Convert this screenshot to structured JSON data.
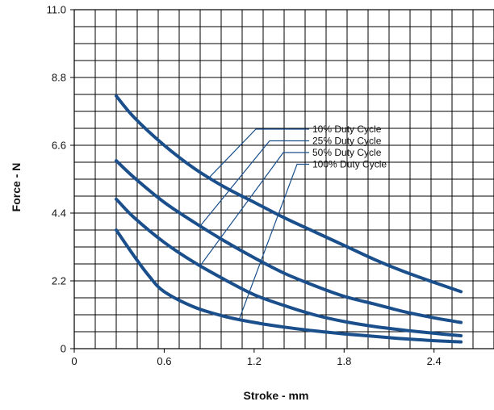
{
  "chart_data": {
    "type": "line",
    "title": "",
    "xlabel": "Stroke - mm",
    "ylabel": "Force - N",
    "xlim": [
      0,
      2.8
    ],
    "ylim": [
      0,
      11.0
    ],
    "x_ticks": [
      0,
      0.6,
      1.2,
      1.8,
      2.4
    ],
    "x_tick_labels": [
      "0",
      "0.6",
      "1.2",
      "1.8",
      "2.4"
    ],
    "y_ticks": [
      0,
      2.2,
      4.4,
      6.6,
      8.8,
      11.0
    ],
    "y_tick_labels": [
      "0",
      "2.2",
      "4.4",
      "6.6",
      "8.8",
      "11.0"
    ],
    "grid": true,
    "legend_position": "upper-right, with leader lines to each curve",
    "line_color": "#1a4f8c",
    "series": [
      {
        "name": "10% Duty Cycle",
        "x": [
          0.28,
          0.4,
          0.6,
          0.8,
          1.0,
          1.2,
          1.4,
          1.6,
          1.8,
          2.0,
          2.2,
          2.4,
          2.58
        ],
        "y": [
          8.2,
          7.5,
          6.6,
          5.85,
          5.25,
          4.75,
          4.25,
          3.8,
          3.35,
          2.9,
          2.5,
          2.15,
          1.85
        ]
      },
      {
        "name": "25% Duty Cycle",
        "x": [
          0.28,
          0.4,
          0.6,
          0.8,
          1.0,
          1.2,
          1.4,
          1.6,
          1.8,
          2.0,
          2.2,
          2.4,
          2.58
        ],
        "y": [
          6.1,
          5.55,
          4.75,
          4.1,
          3.5,
          2.95,
          2.45,
          2.05,
          1.7,
          1.45,
          1.2,
          1.0,
          0.85
        ]
      },
      {
        "name": "50% Duty Cycle",
        "x": [
          0.28,
          0.3,
          0.4,
          0.6,
          0.8,
          1.0,
          1.2,
          1.4,
          1.6,
          1.8,
          2.0,
          2.2,
          2.4,
          2.58
        ],
        "y": [
          4.85,
          4.75,
          4.25,
          3.45,
          2.8,
          2.25,
          1.75,
          1.4,
          1.1,
          0.88,
          0.72,
          0.6,
          0.5,
          0.42
        ]
      },
      {
        "name": "100% Duty Cycle",
        "x": [
          0.28,
          0.4,
          0.5,
          0.6,
          0.8,
          1.0,
          1.2,
          1.4,
          1.6,
          1.8,
          2.0,
          2.2,
          2.4,
          2.58
        ],
        "y": [
          3.85,
          3.0,
          2.35,
          1.85,
          1.35,
          1.05,
          0.85,
          0.7,
          0.58,
          0.48,
          0.4,
          0.32,
          0.26,
          0.22
        ]
      }
    ]
  }
}
